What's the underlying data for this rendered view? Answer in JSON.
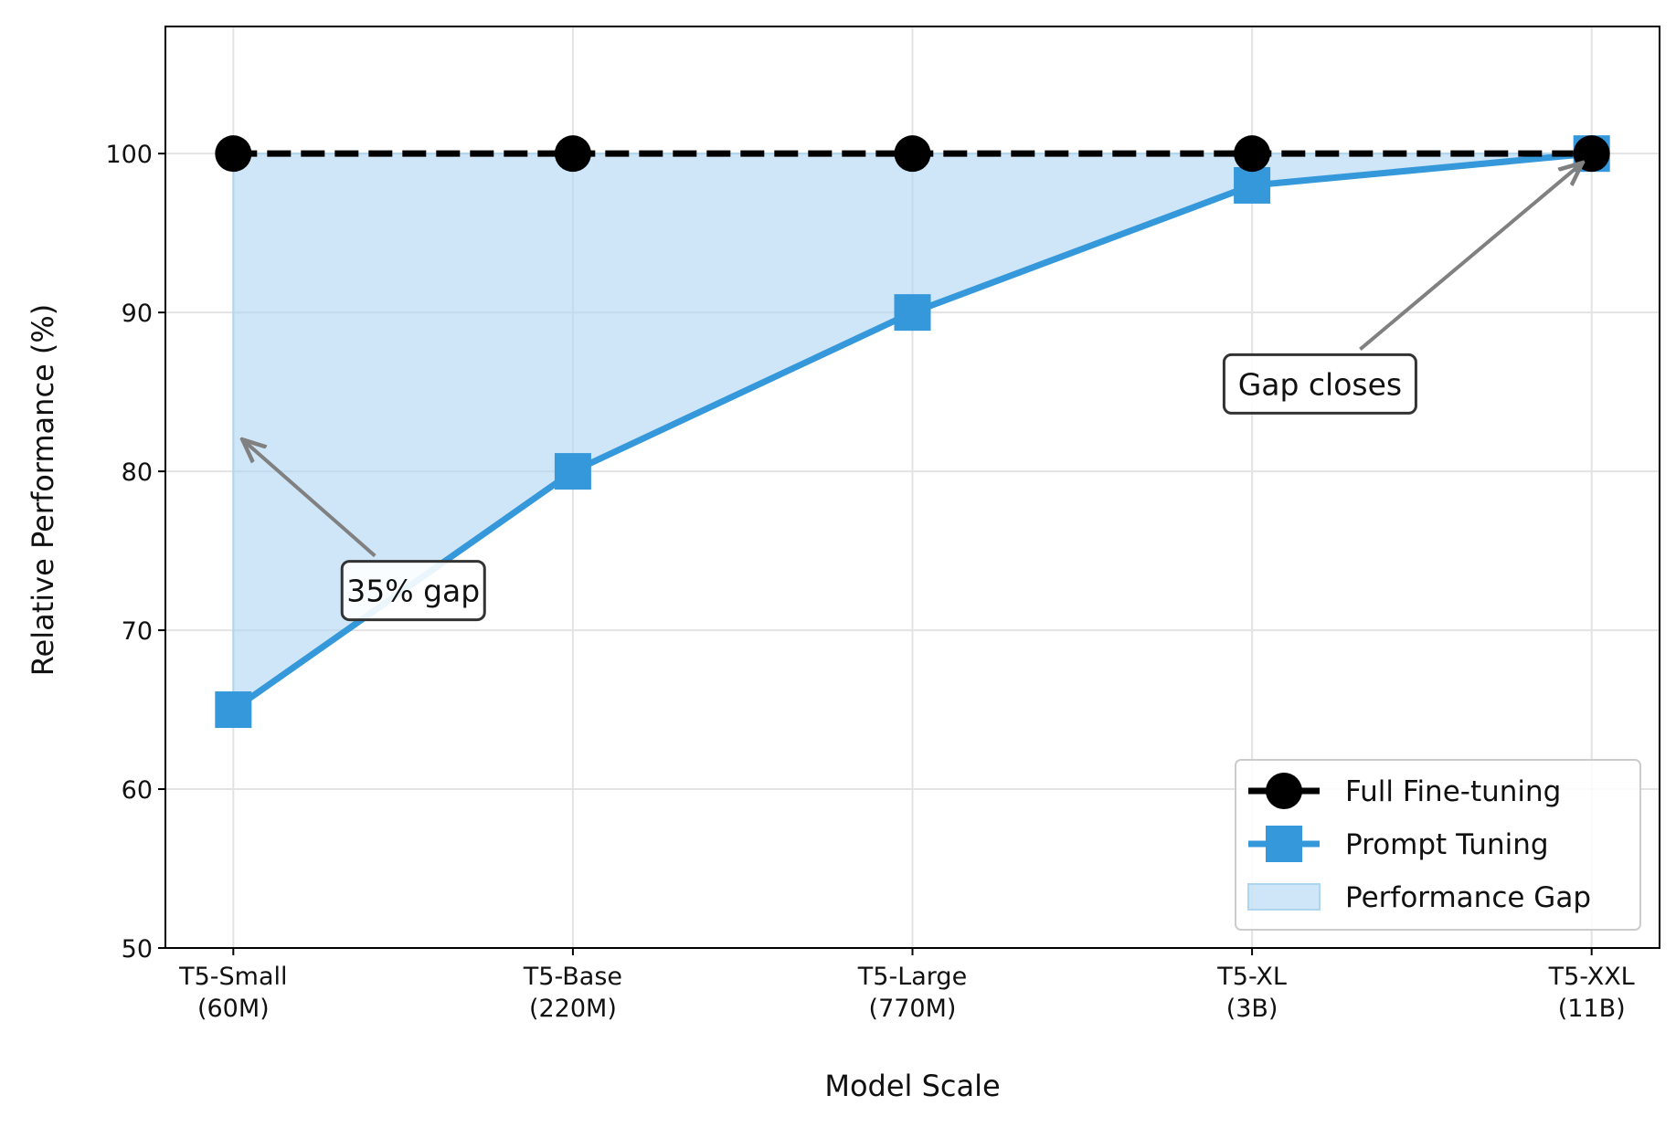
{
  "chart_data": {
    "type": "line",
    "title": "",
    "xlabel": "Model Scale",
    "ylabel": "Relative Performance (%)",
    "categories": [
      [
        "T5-Small",
        "(60M)"
      ],
      [
        "T5-Base",
        "(220M)"
      ],
      [
        "T5-Large",
        "(770M)"
      ],
      [
        "T5-XL",
        "(3B)"
      ],
      [
        "T5-XXL",
        "(11B)"
      ]
    ],
    "xlim": [
      -0.2,
      4.2
    ],
    "ylim": [
      50,
      108
    ],
    "yticks": [
      50,
      60,
      70,
      80,
      90,
      100
    ],
    "grid": true,
    "legend_position": "bottom-right",
    "series": [
      {
        "name": "Full Fine-tuning",
        "values": [
          100,
          100,
          100,
          100,
          100
        ],
        "color": "#000000",
        "style": "dashed",
        "marker": "circle"
      },
      {
        "name": "Prompt Tuning",
        "values": [
          65,
          80,
          90,
          98,
          100
        ],
        "color": "#3498db",
        "style": "solid",
        "marker": "square"
      }
    ],
    "fill": {
      "name": "Performance Gap",
      "between": [
        "Full Fine-tuning",
        "Prompt Tuning"
      ],
      "color": "#aed6f1"
    },
    "annotations": [
      {
        "text": "35% gap",
        "target": [
          0,
          82
        ],
        "text_at": [
          0.53,
          72.5
        ]
      },
      {
        "text": "Gap closes",
        "target": [
          4,
          100
        ],
        "text_at": [
          3.2,
          85.5
        ]
      }
    ]
  }
}
